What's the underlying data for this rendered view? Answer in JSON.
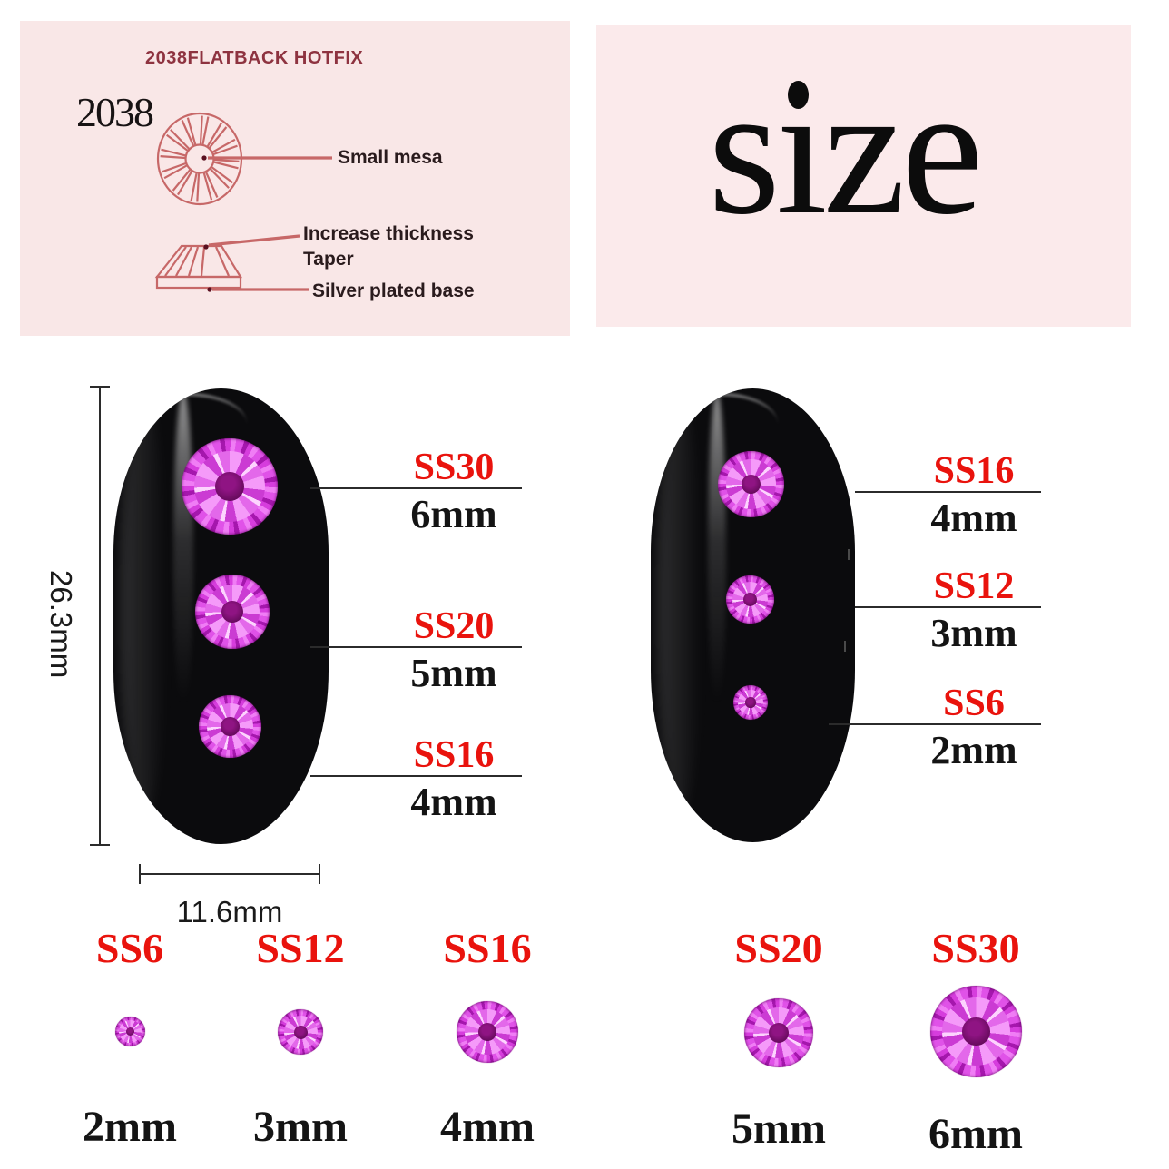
{
  "colors": {
    "panel_pink_left": "#f9e7e7",
    "panel_pink_right": "#fbeaeb",
    "accent_red": "#e9130d",
    "diagram_salmon": "#c76868",
    "title_maroon": "#8e3340",
    "stone_magenta": "#d63ddd",
    "nail_black": "#0b0b0d"
  },
  "spec_panel": {
    "title": "2038FLATBACK HOTFIX",
    "model": "2038",
    "callout_top": "Small mesa",
    "callout_thickness": "Increase thickness",
    "callout_taper": "Taper",
    "callout_base": "Silver plated base"
  },
  "size_panel": {
    "label": "size"
  },
  "dimensions": {
    "height": "26.3mm",
    "width": "11.6mm"
  },
  "left_nail_callouts": [
    {
      "ss": "SS30",
      "mm": "6mm"
    },
    {
      "ss": "SS20",
      "mm": "5mm"
    },
    {
      "ss": "SS16",
      "mm": "4mm"
    }
  ],
  "right_nail_callouts": [
    {
      "ss": "SS16",
      "mm": "4mm"
    },
    {
      "ss": "SS12",
      "mm": "3mm"
    },
    {
      "ss": "SS6",
      "mm": "2mm"
    }
  ],
  "size_chart": [
    {
      "ss": "SS6",
      "mm": "2mm"
    },
    {
      "ss": "SS12",
      "mm": "3mm"
    },
    {
      "ss": "SS16",
      "mm": "4mm"
    },
    {
      "ss": "SS20",
      "mm": "5mm"
    },
    {
      "ss": "SS30",
      "mm": "6mm"
    }
  ]
}
